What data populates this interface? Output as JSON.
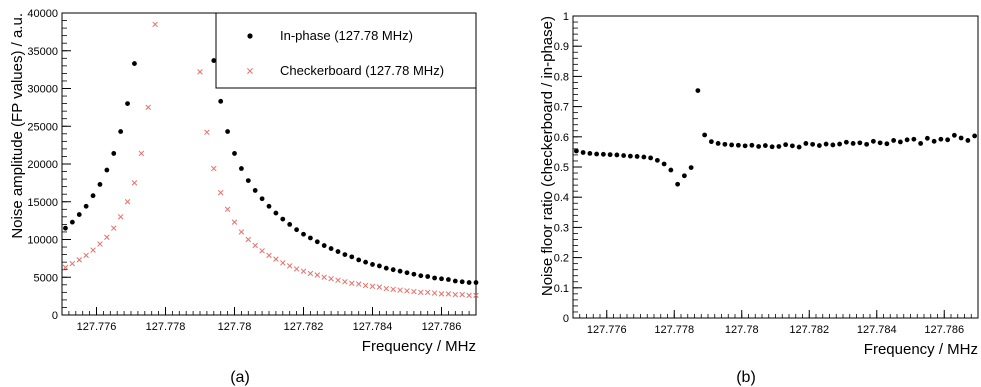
{
  "chart_data": [
    {
      "type": "scatter",
      "panel_label": "(a)",
      "xlabel": "Frequency / MHz",
      "ylabel": "Noise amplitude (FP values) / a.u.",
      "xlim": [
        127.775,
        127.787
      ],
      "ylim": [
        0,
        40000
      ],
      "xticks": [
        {
          "v": 127.776,
          "label": "127.776"
        },
        {
          "v": 127.778,
          "label": "127.778"
        },
        {
          "v": 127.78,
          "label": "127.78"
        },
        {
          "v": 127.782,
          "label": "127.782"
        },
        {
          "v": 127.784,
          "label": "127.784"
        },
        {
          "v": 127.786,
          "label": "127.786"
        }
      ],
      "yticks": [
        {
          "v": 0,
          "label": "0"
        },
        {
          "v": 5000,
          "label": "5000"
        },
        {
          "v": 10000,
          "label": "10000"
        },
        {
          "v": 15000,
          "label": "15000"
        },
        {
          "v": 20000,
          "label": "20000"
        },
        {
          "v": 25000,
          "label": "25000"
        },
        {
          "v": 30000,
          "label": "30000"
        },
        {
          "v": 35000,
          "label": "35000"
        },
        {
          "v": 40000,
          "label": "40000"
        }
      ],
      "legend": "top-right",
      "series": [
        {
          "name": "In-phase (127.78 MHz)",
          "marker": "dot",
          "color": "#000000",
          "x": [
            127.7751,
            127.7753,
            127.7755,
            127.7757,
            127.7759,
            127.7761,
            127.7763,
            127.7765,
            127.7767,
            127.7769,
            127.7771,
            127.7794,
            127.7796,
            127.7798,
            127.78,
            127.7802,
            127.7804,
            127.7806,
            127.7808,
            127.781,
            127.7812,
            127.7814,
            127.7816,
            127.7818,
            127.782,
            127.7822,
            127.7824,
            127.7826,
            127.7828,
            127.783,
            127.7832,
            127.7834,
            127.7836,
            127.7838,
            127.784,
            127.7842,
            127.7844,
            127.7846,
            127.7848,
            127.785,
            127.7852,
            127.7854,
            127.7856,
            127.7858,
            127.786,
            127.7862,
            127.7864,
            127.7866,
            127.7868,
            127.787
          ],
          "y": [
            11500,
            12300,
            13300,
            14400,
            15800,
            17300,
            19200,
            21400,
            24300,
            28000,
            33300,
            33700,
            28300,
            24300,
            21400,
            19400,
            17800,
            16500,
            15400,
            14400,
            13500,
            12700,
            12000,
            11300,
            10700,
            10200,
            9700,
            9200,
            8800,
            8400,
            8000,
            7700,
            7300,
            7000,
            6700,
            6500,
            6200,
            6000,
            5800,
            5600,
            5400,
            5200,
            5100,
            4900,
            4800,
            4700,
            4500,
            4400,
            4300,
            4300
          ]
        },
        {
          "name": "Checkerboard (127.78 MHz)",
          "marker": "cross",
          "color": "#e8706a",
          "x": [
            127.7751,
            127.7753,
            127.7755,
            127.7757,
            127.7759,
            127.7761,
            127.7763,
            127.7765,
            127.7767,
            127.7769,
            127.7771,
            127.7773,
            127.7775,
            127.7777,
            127.779,
            127.7792,
            127.7794,
            127.7796,
            127.7798,
            127.78,
            127.7802,
            127.7804,
            127.7806,
            127.7808,
            127.781,
            127.7812,
            127.7814,
            127.7816,
            127.7818,
            127.782,
            127.7822,
            127.7824,
            127.7826,
            127.7828,
            127.783,
            127.7832,
            127.7834,
            127.7836,
            127.7838,
            127.784,
            127.7842,
            127.7844,
            127.7846,
            127.7848,
            127.785,
            127.7852,
            127.7854,
            127.7856,
            127.7858,
            127.786,
            127.7862,
            127.7864,
            127.7866,
            127.7868,
            127.787
          ],
          "y": [
            6300,
            6800,
            7300,
            7900,
            8600,
            9400,
            10300,
            11500,
            13000,
            15000,
            17500,
            21400,
            27500,
            38500,
            32200,
            24200,
            19400,
            16200,
            14000,
            12300,
            11000,
            10000,
            9200,
            8500,
            7900,
            7400,
            6900,
            6500,
            6100,
            5800,
            5500,
            5300,
            5000,
            4800,
            4600,
            4400,
            4200,
            4100,
            3900,
            3800,
            3700,
            3500,
            3400,
            3300,
            3200,
            3100,
            3000,
            3000,
            2900,
            2800,
            2800,
            2700,
            2700,
            2600,
            2600
          ]
        }
      ]
    },
    {
      "type": "scatter",
      "panel_label": "(b)",
      "xlabel": "Frequency / MHz",
      "ylabel": "Noise floor ratio (checkerboard / in-phase)",
      "xlim": [
        127.775,
        127.787
      ],
      "ylim": [
        0,
        1
      ],
      "xticks": [
        {
          "v": 127.776,
          "label": "127.776"
        },
        {
          "v": 127.778,
          "label": "127.778"
        },
        {
          "v": 127.78,
          "label": "127.78"
        },
        {
          "v": 127.782,
          "label": "127.782"
        },
        {
          "v": 127.784,
          "label": "127.784"
        },
        {
          "v": 127.786,
          "label": "127.786"
        }
      ],
      "yticks": [
        {
          "v": 0,
          "label": "0"
        },
        {
          "v": 0.1,
          "label": "0.1"
        },
        {
          "v": 0.2,
          "label": "0.2"
        },
        {
          "v": 0.3,
          "label": "0.3"
        },
        {
          "v": 0.4,
          "label": "0.4"
        },
        {
          "v": 0.5,
          "label": "0.5"
        },
        {
          "v": 0.6,
          "label": "0.6"
        },
        {
          "v": 0.7,
          "label": "0.7"
        },
        {
          "v": 0.8,
          "label": "0.8"
        },
        {
          "v": 0.9,
          "label": "0.9"
        },
        {
          "v": 1,
          "label": "1"
        }
      ],
      "series": [
        {
          "marker": "dot",
          "color": "#000000",
          "x": [
            127.7751,
            127.7753,
            127.7755,
            127.7757,
            127.7759,
            127.7761,
            127.7763,
            127.7765,
            127.7767,
            127.7769,
            127.7771,
            127.7773,
            127.7775,
            127.7777,
            127.7779,
            127.7781,
            127.7783,
            127.7785,
            127.7787,
            127.7789,
            127.7791,
            127.7793,
            127.7795,
            127.7797,
            127.7799,
            127.7801,
            127.7803,
            127.7805,
            127.7807,
            127.7809,
            127.7811,
            127.7813,
            127.7815,
            127.7817,
            127.7819,
            127.7821,
            127.7823,
            127.7825,
            127.7827,
            127.7829,
            127.7831,
            127.7833,
            127.7835,
            127.7837,
            127.7839,
            127.7841,
            127.7843,
            127.7845,
            127.7847,
            127.7849,
            127.7851,
            127.7853,
            127.7855,
            127.7857,
            127.7859,
            127.7861,
            127.7863,
            127.7865,
            127.7867,
            127.7869
          ],
          "y": [
            0.553,
            0.548,
            0.545,
            0.543,
            0.542,
            0.541,
            0.54,
            0.538,
            0.536,
            0.535,
            0.533,
            0.53,
            0.522,
            0.51,
            0.49,
            0.443,
            0.471,
            0.498,
            0.753,
            0.606,
            0.584,
            0.578,
            0.575,
            0.573,
            0.572,
            0.57,
            0.572,
            0.568,
            0.571,
            0.567,
            0.568,
            0.574,
            0.57,
            0.566,
            0.578,
            0.575,
            0.571,
            0.576,
            0.573,
            0.576,
            0.582,
            0.578,
            0.58,
            0.575,
            0.585,
            0.58,
            0.577,
            0.588,
            0.583,
            0.59,
            0.592,
            0.578,
            0.595,
            0.585,
            0.592,
            0.59,
            0.605,
            0.596,
            0.588,
            0.603
          ]
        }
      ]
    }
  ]
}
